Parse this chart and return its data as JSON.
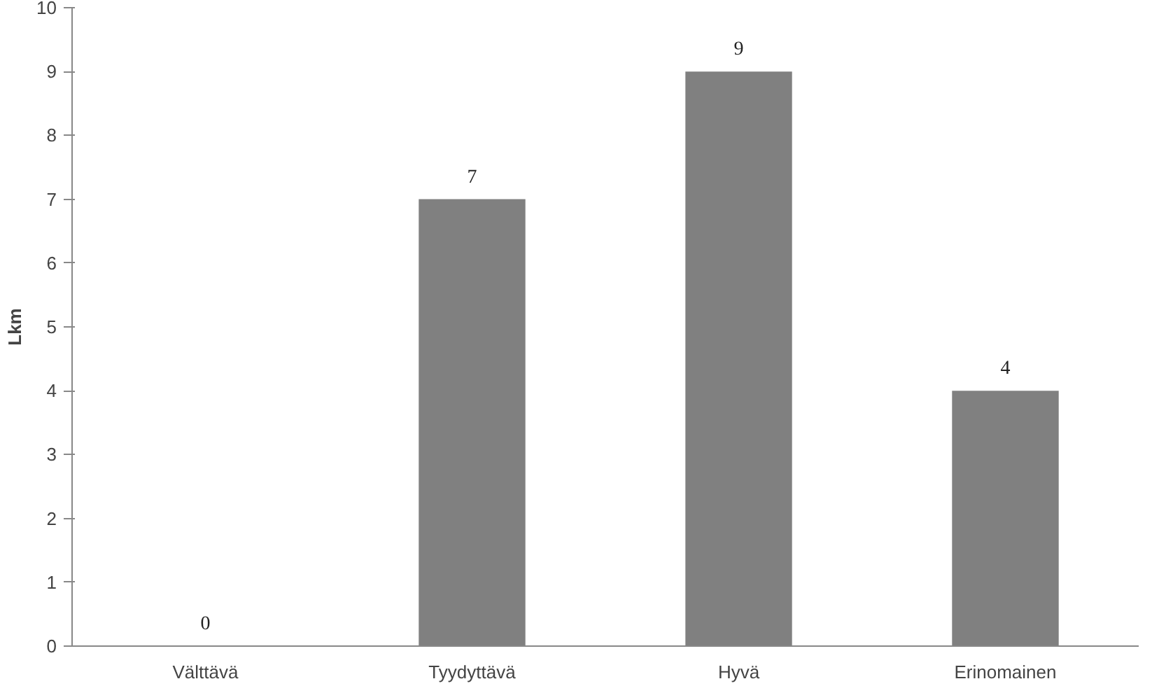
{
  "chart_data": {
    "type": "bar",
    "ylabel": "Lkm",
    "categories": [
      "Välttävä",
      "Tyydyttävä",
      "Hyvä",
      "Erinomainen"
    ],
    "values": [
      0,
      7,
      9,
      4
    ],
    "color": "#808080",
    "ylim": [
      0,
      10
    ],
    "yticks": [
      0,
      1,
      2,
      3,
      4,
      5,
      6,
      7,
      8,
      9,
      10
    ],
    "grid": false,
    "data_labels": true
  }
}
